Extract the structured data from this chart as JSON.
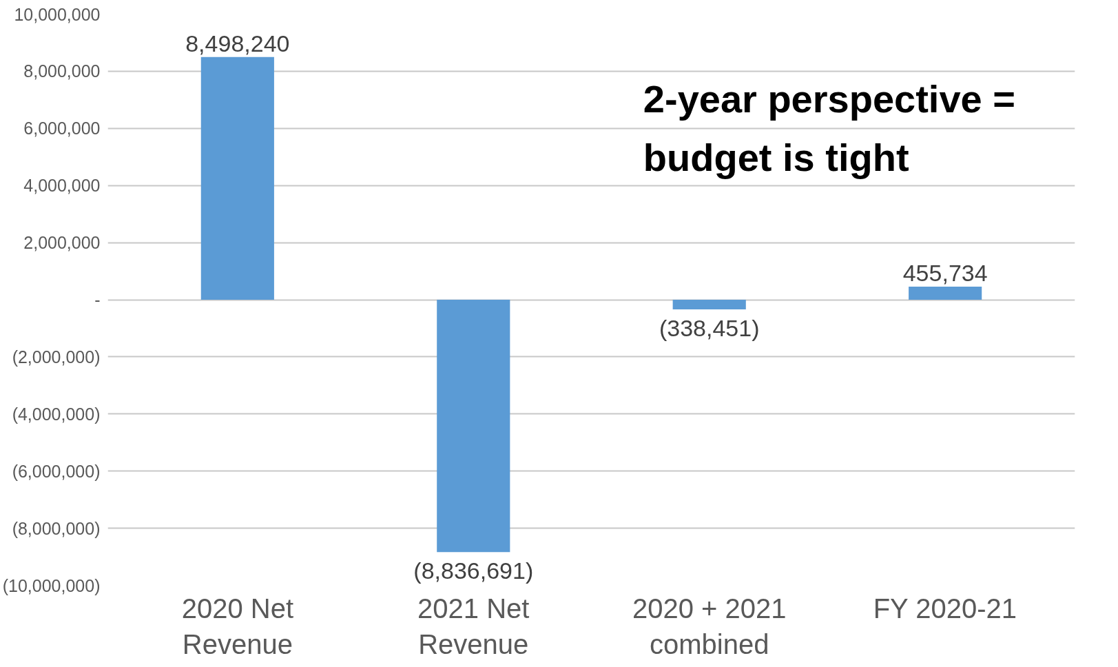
{
  "chart_data": {
    "type": "bar",
    "categories": [
      "2020 Net Revenue",
      "2021 Net Revenue",
      "2020 + 2021 combined",
      "FY 2020-21"
    ],
    "values": [
      8498240,
      -8836691,
      -338451,
      455734
    ],
    "value_labels": [
      "8,498,240",
      "(8,836,691)",
      "(338,451)",
      "455,734"
    ],
    "color": "#5b9bd5",
    "ylim": [
      -10000000,
      10000000
    ],
    "yticks": [
      {
        "value": 10000000,
        "label": "10,000,000"
      },
      {
        "value": 8000000,
        "label": "8,000,000"
      },
      {
        "value": 6000000,
        "label": "6,000,000"
      },
      {
        "value": 4000000,
        "label": "4,000,000"
      },
      {
        "value": 2000000,
        "label": "2,000,000"
      },
      {
        "value": 0,
        "label": "-"
      },
      {
        "value": -2000000,
        "label": "(2,000,000)"
      },
      {
        "value": -4000000,
        "label": "(4,000,000)"
      },
      {
        "value": -6000000,
        "label": "(6,000,000)"
      },
      {
        "value": -8000000,
        "label": "(8,000,000)"
      },
      {
        "value": -10000000,
        "label": "(10,000,000)"
      }
    ],
    "grid": "y",
    "annotations": [
      "2-year perspective = budget is tight"
    ]
  }
}
